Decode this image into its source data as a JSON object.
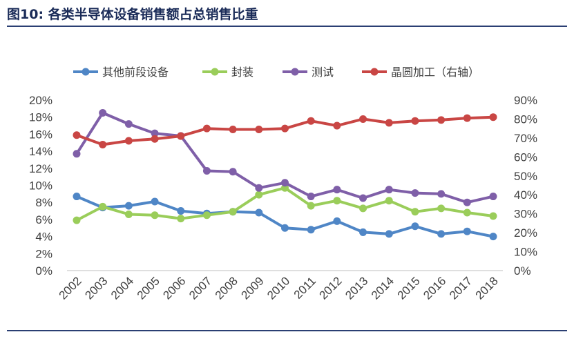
{
  "figure": {
    "title": "图10:  各类半导体设备销售额占总销售比重"
  },
  "chart_data": {
    "type": "line",
    "title": "",
    "xlabel": "",
    "ylabel": "",
    "legend_position": "top",
    "grid": false,
    "categories": [
      "2002",
      "2003",
      "2004",
      "2005",
      "2006",
      "2007",
      "2008",
      "2009",
      "2010",
      "2011",
      "2012",
      "2013",
      "2014",
      "2015",
      "2016",
      "2017",
      "2018"
    ],
    "y_left": {
      "min": 0,
      "max": 20,
      "step": 2,
      "unit": "%",
      "ticks": [
        "0%",
        "2%",
        "4%",
        "6%",
        "8%",
        "10%",
        "12%",
        "14%",
        "16%",
        "18%",
        "20%"
      ]
    },
    "y_right": {
      "min": 0,
      "max": 90,
      "step": 10,
      "unit": "%",
      "ticks": [
        "0%",
        "10%",
        "20%",
        "30%",
        "40%",
        "50%",
        "60%",
        "70%",
        "80%",
        "90%"
      ]
    },
    "series": [
      {
        "name": "其他前段设备",
        "axis": "left",
        "color": "#4f86c6",
        "values": [
          8.7,
          7.4,
          7.6,
          8.1,
          7.0,
          6.7,
          6.9,
          6.8,
          5.0,
          4.8,
          5.8,
          4.5,
          4.3,
          5.2,
          4.3,
          4.6,
          4.0
        ]
      },
      {
        "name": "封装",
        "axis": "left",
        "color": "#9acd5a",
        "values": [
          5.9,
          7.5,
          6.6,
          6.5,
          6.1,
          6.5,
          6.9,
          8.9,
          9.7,
          7.6,
          8.2,
          7.3,
          8.2,
          6.9,
          7.3,
          6.8,
          6.4
        ]
      },
      {
        "name": "测试",
        "axis": "left",
        "color": "#7f5fa8",
        "values": [
          13.7,
          18.5,
          17.2,
          16.1,
          15.8,
          11.7,
          11.6,
          9.7,
          10.3,
          8.7,
          9.5,
          8.5,
          9.5,
          9.1,
          9.0,
          8.0,
          8.7
        ]
      },
      {
        "name": "晶圆加工（右轴）",
        "axis": "right",
        "color": "#c94644",
        "values": [
          71.5,
          66.5,
          68.5,
          69.5,
          71.0,
          75.0,
          74.5,
          74.5,
          75.0,
          79.0,
          76.5,
          80.0,
          78.0,
          79.0,
          79.5,
          80.5,
          81.0
        ]
      }
    ]
  }
}
